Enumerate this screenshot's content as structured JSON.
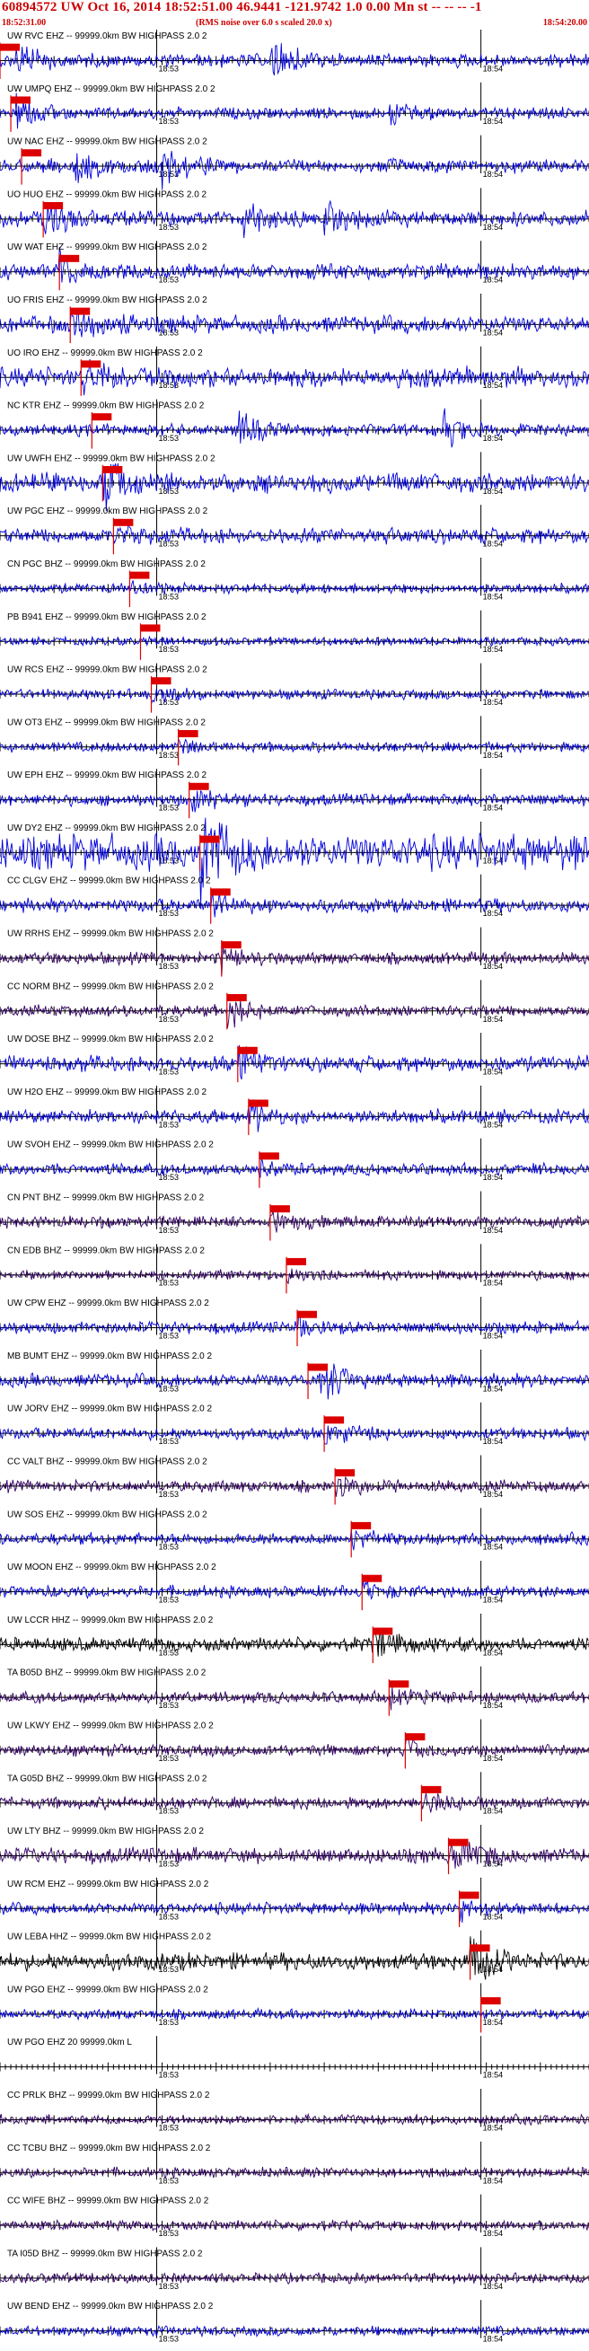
{
  "header": {
    "title": "60894572 UW Oct 16, 2014 18:52:51.00   46.9441 -121.9742  1.0 0.00 Mn st -- -- --  -1",
    "start_time": "18:52:31.00",
    "note": "(RMS noise over 6.0 s scaled 20.0 x)",
    "end_time": "18:54:20.00"
  },
  "colors": {
    "trace_blue": "#0000dd",
    "trace_purple": "#330066",
    "trace_black": "#000000",
    "pick_red": "#dd0000",
    "axis": "#000000"
  },
  "chart_data": {
    "type": "line",
    "time_range": [
      "18:52:31.00",
      "18:54:20.00"
    ],
    "minute_ticks": [
      {
        "label": "18:53",
        "seconds": 29
      },
      {
        "label": "18:54",
        "seconds": 89
      }
    ],
    "stations": [
      {
        "label": "UW RVC EHZ -- 99999.0km BW  HIGHPASS  2.0  2",
        "pick_s": 0.0,
        "color": "blue",
        "amp": 0.35,
        "bursts": [
          [
            3,
            0.9
          ],
          [
            50,
            1.2
          ]
        ]
      },
      {
        "label": "UW UMPQ EHZ -- 99999.0km BW  HIGHPASS  2.0  2",
        "pick_s": 2.0,
        "color": "blue",
        "amp": 0.3,
        "bursts": [
          [
            3,
            1.4
          ],
          [
            72,
            0.9
          ]
        ]
      },
      {
        "label": "UW NAC EHZ -- 99999.0km BW  HIGHPASS  2.0  2",
        "pick_s": 4.0,
        "color": "blue",
        "amp": 0.35,
        "bursts": [
          [
            14,
            1.0
          ],
          [
            30,
            1.2
          ]
        ]
      },
      {
        "label": "UO HUO EHZ -- 99999.0km BW  HIGHPASS  2.0  2",
        "pick_s": 8.0,
        "color": "blue",
        "amp": 0.4,
        "bursts": [
          [
            8,
            0.9
          ],
          [
            45,
            0.9
          ],
          [
            60,
            0.9
          ]
        ]
      },
      {
        "label": "UW WAT EHZ -- 99999.0km BW  HIGHPASS  2.0  2",
        "pick_s": 11.0,
        "color": "blue",
        "amp": 0.4,
        "bursts": [
          [
            11,
            0.9
          ]
        ]
      },
      {
        "label": "UO FRIS EHZ -- 99999.0km BW  HIGHPASS  2.0  2",
        "pick_s": 13.0,
        "color": "blue",
        "amp": 0.45,
        "bursts": [
          [
            13,
            0.8
          ]
        ]
      },
      {
        "label": "UO IRO EHZ -- 99999.0km BW  HIGHPASS  2.0  2",
        "pick_s": 15.0,
        "color": "blue",
        "amp": 0.5,
        "bursts": [
          [
            15,
            1.0
          ]
        ]
      },
      {
        "label": "NC KTR EHZ -- 99999.0km BW  HIGHPASS  2.0  2",
        "pick_s": 17.0,
        "color": "blue",
        "amp": 0.3,
        "bursts": [
          [
            44,
            1.3
          ],
          [
            82,
            1.3
          ]
        ]
      },
      {
        "label": "UW UWFH EHZ -- 99999.0km BW  HIGHPASS  2.0  2",
        "pick_s": 19.0,
        "color": "blue",
        "amp": 0.5,
        "bursts": [
          [
            19,
            1.2
          ]
        ]
      },
      {
        "label": "UW PGC EHZ -- 99999.0km BW  HIGHPASS  2.0  2",
        "pick_s": 21.0,
        "color": "blue",
        "amp": 0.4,
        "bursts": [
          [
            21,
            0.6
          ]
        ]
      },
      {
        "label": "CN PGC BHZ -- 99999.0km BW  HIGHPASS  2.0  2",
        "pick_s": 24.0,
        "color": "blue",
        "amp": 0.25,
        "bursts": [
          [
            24,
            0.6
          ]
        ]
      },
      {
        "label": "PB B941 EHZ -- 99999.0km BW  HIGHPASS  2.0  2",
        "pick_s": 26.0,
        "color": "blue",
        "amp": 0.2,
        "bursts": [
          [
            26,
            0.7
          ]
        ]
      },
      {
        "label": "UW RCS EHZ -- 99999.0km BW  HIGHPASS  2.0  2",
        "pick_s": 28.0,
        "color": "blue",
        "amp": 0.25,
        "bursts": [
          [
            28,
            0.8
          ]
        ]
      },
      {
        "label": "UW OT3 EHZ -- 99999.0km BW  HIGHPASS  2.0  2",
        "pick_s": 33.0,
        "color": "blue",
        "amp": 0.25,
        "bursts": [
          [
            33,
            0.8
          ]
        ]
      },
      {
        "label": "UW EPH EHZ -- 99999.0km BW  HIGHPASS  2.0  2",
        "pick_s": 35.0,
        "color": "blue",
        "amp": 0.3,
        "bursts": [
          [
            35,
            1.0
          ]
        ]
      },
      {
        "label": "UW DY2 EHZ -- 99999.0km BW  HIGHPASS  2.0  2",
        "pick_s": 37.0,
        "color": "blue",
        "amp": 0.9,
        "bursts": [
          [
            37,
            1.4
          ]
        ]
      },
      {
        "label": "CC CLGV EHZ -- 99999.0km BW  HIGHPASS  2.0  2",
        "pick_s": 39.0,
        "color": "blue",
        "amp": 0.35,
        "bursts": [
          [
            39,
            0.8
          ]
        ]
      },
      {
        "label": "UW RRHS EHZ -- 99999.0km BW  HIGHPASS  2.0  2",
        "pick_s": 41.0,
        "color": "purple",
        "amp": 0.3,
        "bursts": [
          [
            41,
            0.9
          ]
        ]
      },
      {
        "label": "CC NORM BHZ -- 99999.0km BW  HIGHPASS  2.0  2",
        "pick_s": 42.0,
        "color": "purple",
        "amp": 0.3,
        "bursts": [
          [
            42,
            1.1
          ]
        ]
      },
      {
        "label": "UW DOSE BHZ -- 99999.0km BW  HIGHPASS  2.0  2",
        "pick_s": 44.0,
        "color": "blue",
        "amp": 0.4,
        "bursts": [
          [
            44,
            1.2
          ]
        ]
      },
      {
        "label": "UW H2O EHZ -- 99999.0km BW  HIGHPASS  2.0  2",
        "pick_s": 46.0,
        "color": "blue",
        "amp": 0.35,
        "bursts": [
          [
            46,
            0.9
          ]
        ]
      },
      {
        "label": "UW SVOH EHZ -- 99999.0km BW  HIGHPASS  2.0  2",
        "pick_s": 48.0,
        "color": "blue",
        "amp": 0.3,
        "bursts": [
          [
            48,
            0.7
          ]
        ]
      },
      {
        "label": "CN PNT BHZ -- 99999.0km BW  HIGHPASS  2.0  2",
        "pick_s": 50.0,
        "color": "purple",
        "amp": 0.3,
        "bursts": [
          [
            50,
            0.7
          ]
        ]
      },
      {
        "label": "CN EDB BHZ -- 99999.0km BW  HIGHPASS  2.0  2",
        "pick_s": 53.0,
        "color": "purple",
        "amp": 0.25,
        "bursts": [
          [
            53,
            0.6
          ]
        ]
      },
      {
        "label": "UW CPW EHZ -- 99999.0km BW  HIGHPASS  2.0  2",
        "pick_s": 55.0,
        "color": "blue",
        "amp": 0.3,
        "bursts": [
          [
            55,
            0.8
          ]
        ]
      },
      {
        "label": "MB BUMT EHZ -- 99999.0km BW  HIGHPASS  2.0  2",
        "pick_s": 57.0,
        "color": "blue",
        "amp": 0.35,
        "bursts": [
          [
            59,
            1.5
          ]
        ]
      },
      {
        "label": "UW JORV EHZ -- 99999.0km BW  HIGHPASS  2.0  2",
        "pick_s": 60.0,
        "color": "blue",
        "amp": 0.3,
        "bursts": [
          [
            60,
            0.8
          ]
        ]
      },
      {
        "label": "CC VALT BHZ -- 99999.0km BW  HIGHPASS  2.0  2",
        "pick_s": 62.0,
        "color": "purple",
        "amp": 0.3,
        "bursts": [
          [
            62,
            0.8
          ]
        ]
      },
      {
        "label": "UW SOS EHZ -- 99999.0km BW  HIGHPASS  2.0  2",
        "pick_s": 65.0,
        "color": "blue",
        "amp": 0.3,
        "bursts": [
          [
            65,
            0.7
          ]
        ]
      },
      {
        "label": "UW MOON EHZ -- 99999.0km BW  HIGHPASS  2.0  2",
        "pick_s": 67.0,
        "color": "blue",
        "amp": 0.3,
        "bursts": [
          [
            67,
            0.7
          ]
        ]
      },
      {
        "label": "UW LCCR HHZ -- 99999.0km BW  HIGHPASS  2.0  2",
        "pick_s": 69.0,
        "color": "black",
        "amp": 0.35,
        "bursts": [
          [
            69,
            1.1
          ]
        ]
      },
      {
        "label": "TA B05D BHZ -- 99999.0km BW  HIGHPASS  2.0  2",
        "pick_s": 72.0,
        "color": "purple",
        "amp": 0.3,
        "bursts": [
          [
            72,
            0.8
          ]
        ]
      },
      {
        "label": "UW LKWY EHZ -- 99999.0km BW  HIGHPASS  2.0  2",
        "pick_s": 75.0,
        "color": "purple",
        "amp": 0.3,
        "bursts": [
          [
            75,
            0.8
          ]
        ]
      },
      {
        "label": "TA G05D BHZ -- 99999.0km BW  HIGHPASS  2.0  2",
        "pick_s": 78.0,
        "color": "purple",
        "amp": 0.3,
        "bursts": [
          [
            78,
            0.8
          ]
        ]
      },
      {
        "label": "UW LTY BHZ -- 99999.0km BW  HIGHPASS  2.0  2",
        "pick_s": 83.0,
        "color": "purple",
        "amp": 0.4,
        "bursts": [
          [
            83,
            1.4
          ]
        ]
      },
      {
        "label": "UW RCM EHZ -- 99999.0km BW  HIGHPASS  2.0  2",
        "pick_s": 85.0,
        "color": "blue",
        "amp": 0.3,
        "bursts": [
          [
            85,
            0.8
          ]
        ]
      },
      {
        "label": "UW LEBA HHZ -- 99999.0km BW  HIGHPASS  2.0  2",
        "pick_s": 87.0,
        "color": "black",
        "amp": 0.45,
        "bursts": [
          [
            87,
            1.0
          ]
        ]
      },
      {
        "label": "UW PGO EHZ -- 99999.0km BW  HIGHPASS  2.0  2",
        "pick_s": 89.0,
        "color": "blue",
        "amp": 0.25,
        "bursts": []
      },
      {
        "label": "UW PGO EHZ 20 99999.0km L",
        "pick_s": null,
        "color": "none",
        "amp": 0.0,
        "bursts": []
      },
      {
        "label": "CC PRLK BHZ -- 99999.0km BW  HIGHPASS  2.0  2",
        "pick_s": null,
        "color": "purple",
        "amp": 0.25,
        "bursts": []
      },
      {
        "label": "CC TCBU BHZ -- 99999.0km BW  HIGHPASS  2.0  2",
        "pick_s": null,
        "color": "purple",
        "amp": 0.25,
        "bursts": []
      },
      {
        "label": "CC WIFE BHZ -- 99999.0km BW  HIGHPASS  2.0  2",
        "pick_s": null,
        "color": "purple",
        "amp": 0.25,
        "bursts": []
      },
      {
        "label": "TA I05D BHZ -- 99999.0km BW  HIGHPASS  2.0  2",
        "pick_s": null,
        "color": "purple",
        "amp": 0.25,
        "bursts": []
      },
      {
        "label": "UW BEND EHZ -- 99999.0km BW  HIGHPASS  2.0  2",
        "pick_s": null,
        "color": "blue",
        "amp": 0.25,
        "bursts": []
      }
    ]
  }
}
